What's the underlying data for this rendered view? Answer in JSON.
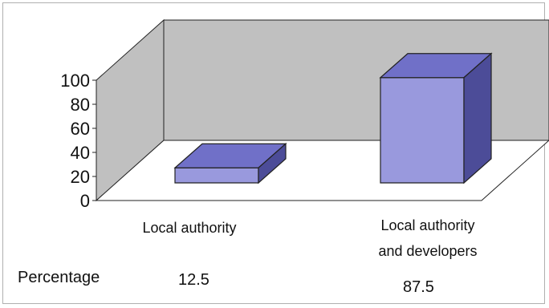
{
  "chart_data": {
    "type": "bar",
    "categories": [
      "Local authority",
      "Local authority and developers"
    ],
    "category_lines": [
      [
        "Local authority"
      ],
      [
        "Local authority",
        "and developers"
      ]
    ],
    "values": [
      12.5,
      87.5
    ],
    "ylim": [
      0,
      100
    ],
    "yticks": [
      0,
      20,
      40,
      60,
      80,
      100
    ],
    "grid": false,
    "legend": "none",
    "data_table": {
      "row_label": "Percentage",
      "values": [
        "12.5",
        "87.5"
      ]
    },
    "colors": {
      "bar_front": "#9999dd",
      "bar_top": "#7070c8",
      "bar_side": "#4c4c98",
      "back_wall": "#c0c0c0",
      "side_wall": "#c0c0c0",
      "floor": "#ffffff"
    }
  }
}
